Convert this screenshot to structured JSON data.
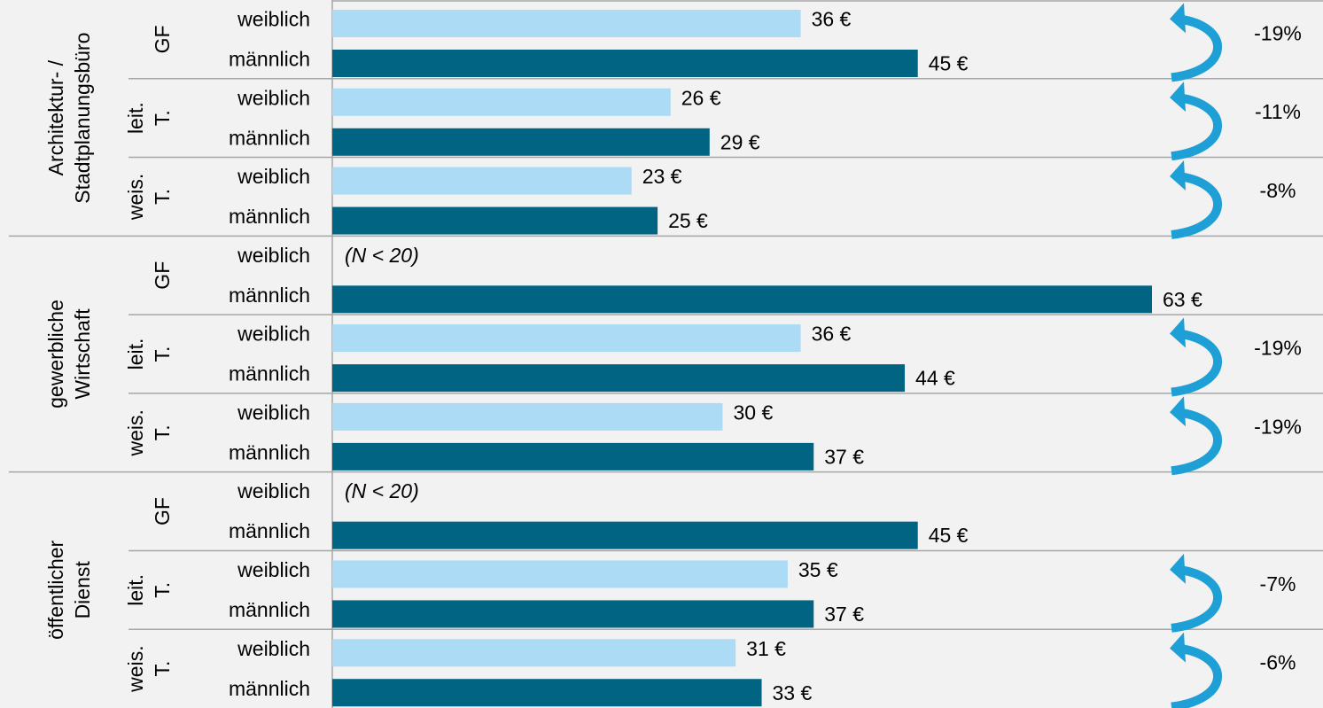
{
  "chart_data": {
    "type": "bar",
    "groups": [
      {
        "label": [
          "Architektur- /",
          "Stadtplanungsbüro"
        ],
        "roles": [
          [
            "GF"
          ],
          [
            "leit.",
            "T."
          ],
          [
            "weis.",
            "T."
          ]
        ]
      },
      {
        "label": [
          "gewerbliche",
          "Wirtschaft"
        ],
        "roles": [
          [
            "GF"
          ],
          [
            "leit.",
            "T."
          ],
          [
            "weis.",
            "T."
          ]
        ]
      },
      {
        "label": [
          "öffentlicher",
          "Dienst"
        ],
        "roles": [
          [
            "GF"
          ],
          [
            "leit.",
            "T."
          ],
          [
            "weis.",
            "T."
          ]
        ]
      }
    ],
    "series": [
      {
        "name": "weiblich",
        "color": "#abdbf5",
        "values": [
          36,
          26,
          23,
          null,
          36,
          30,
          null,
          35,
          31
        ],
        "value_labels": [
          "36 €",
          "26 €",
          "23 €",
          "(N < 20)",
          "36 €",
          "30 €",
          "(N < 20)",
          "35 €",
          "31 €"
        ]
      },
      {
        "name": "männlich",
        "color": "#006482",
        "values": [
          45,
          29,
          25,
          63,
          44,
          37,
          45,
          37,
          33
        ],
        "value_labels": [
          "45 €",
          "29 €",
          "25 €",
          "63 €",
          "44 €",
          "37 €",
          "45 €",
          "37 €",
          "33 €"
        ]
      }
    ],
    "gaps": [
      -19,
      -11,
      -8,
      null,
      -19,
      -19,
      null,
      -7,
      -6
    ],
    "gap_labels": [
      "-19%",
      "-11%",
      "-8%",
      null,
      "-19%",
      "-19%",
      null,
      "-7%",
      "-6%"
    ],
    "arrow_color": "#1ea0d6"
  }
}
